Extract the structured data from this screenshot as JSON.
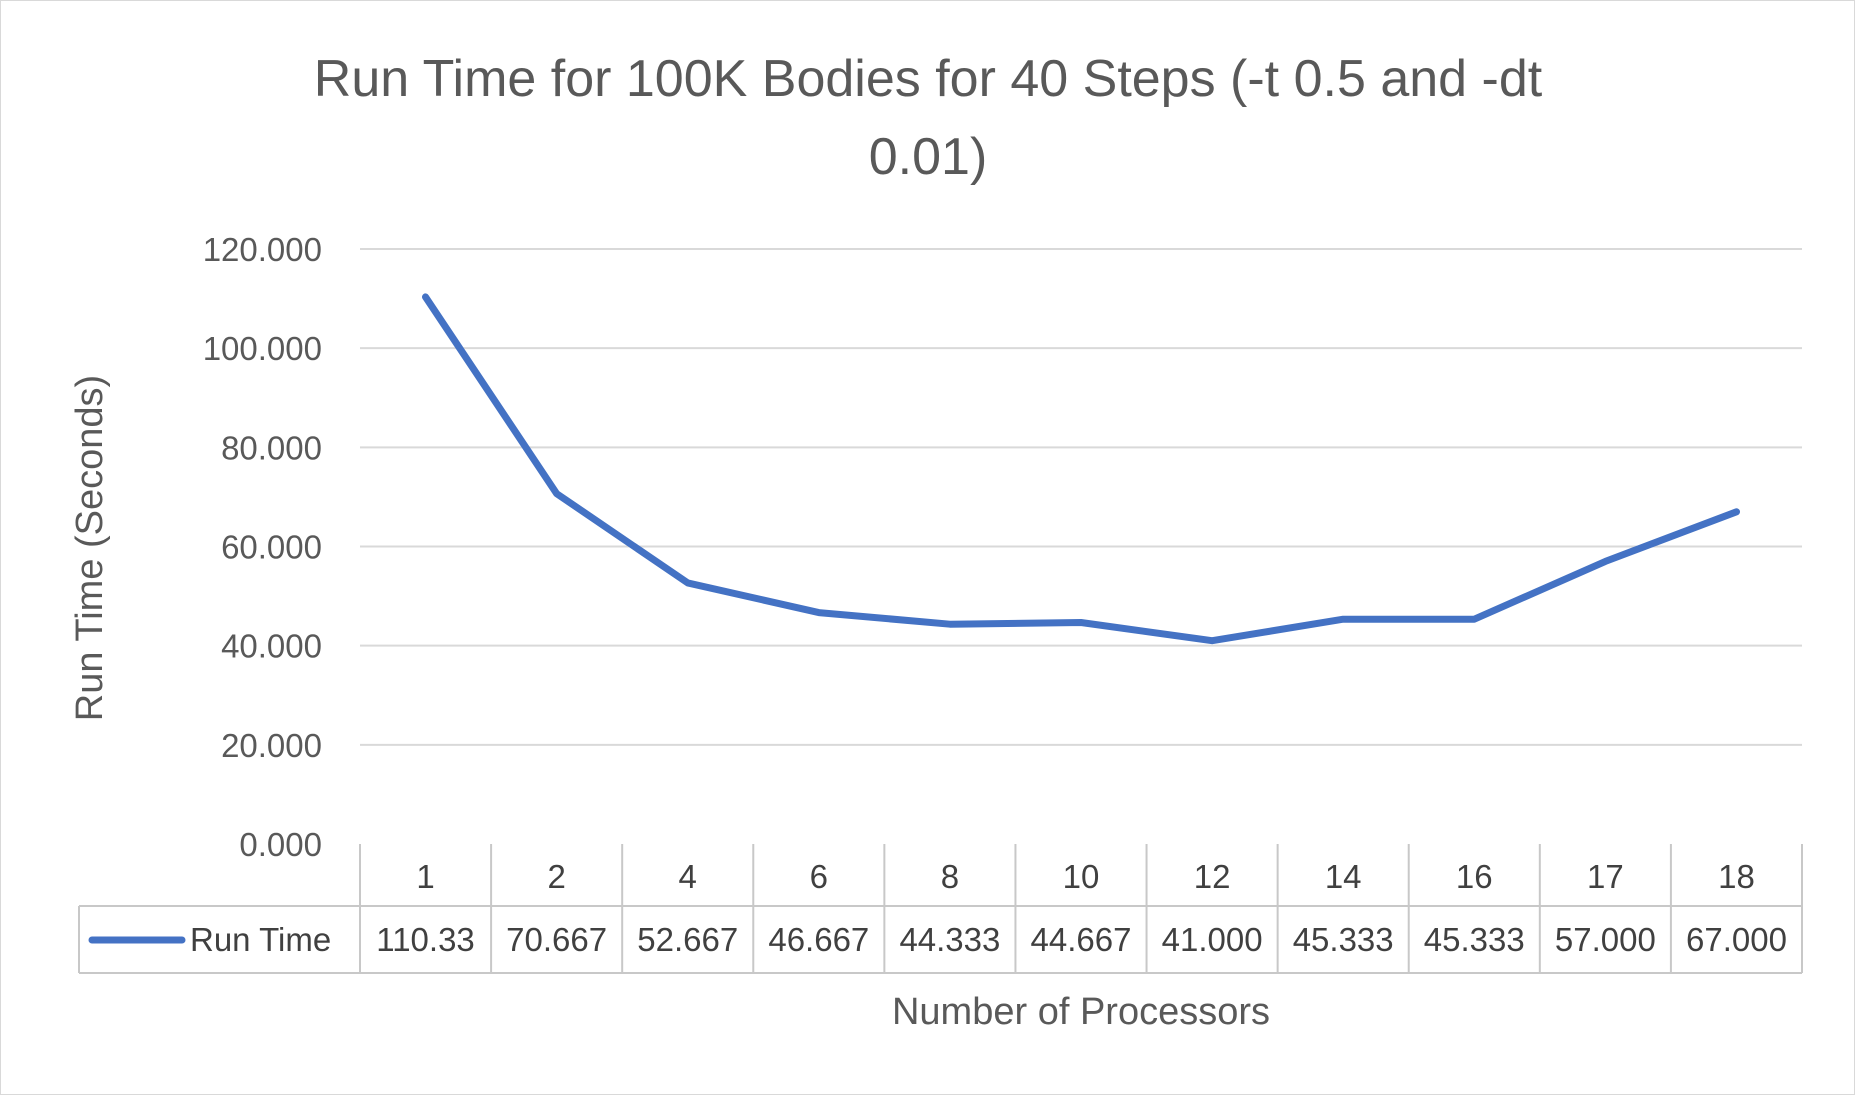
{
  "chart_data": {
    "type": "line",
    "title_lines": [
      "Run Time for 100K Bodies for 40 Steps (-t 0.5 and -dt",
      "0.01)"
    ],
    "xlabel": "Number of Processors",
    "ylabel": "Run Time (Seconds)",
    "categories": [
      "1",
      "2",
      "4",
      "6",
      "8",
      "10",
      "12",
      "14",
      "16",
      "17",
      "18"
    ],
    "series": [
      {
        "name": "Run Time",
        "values": [
          110.333,
          70.667,
          52.667,
          46.667,
          44.333,
          44.667,
          41.0,
          45.333,
          45.333,
          57.0,
          67.0
        ],
        "labels": [
          "110.33",
          "70.667",
          "52.667",
          "46.667",
          "44.333",
          "44.667",
          "41.000",
          "45.333",
          "45.333",
          "57.000",
          "67.000"
        ],
        "color": "#4472c4"
      }
    ],
    "ylim": [
      0,
      120
    ],
    "yticks": [
      "0.000",
      "20.000",
      "40.000",
      "60.000",
      "80.000",
      "100.000",
      "120.000"
    ],
    "grid": true,
    "data_table": true
  }
}
